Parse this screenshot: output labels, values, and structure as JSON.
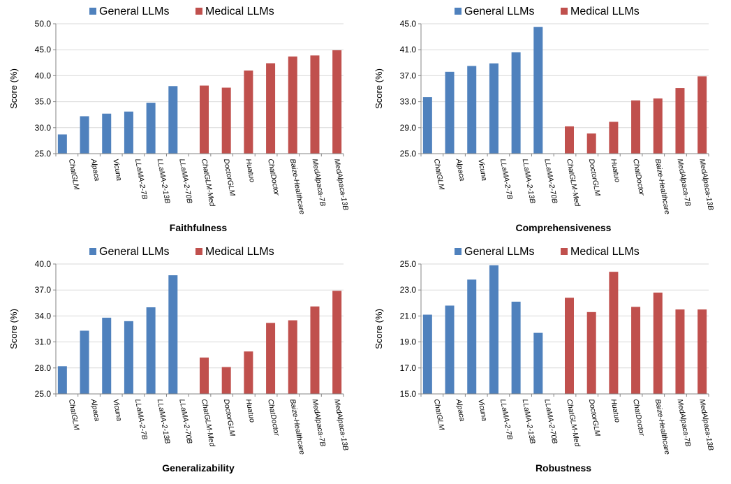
{
  "legend": {
    "general_label": "General LLMs",
    "medical_label": "Medical LLMs"
  },
  "colors": {
    "general": "#4F81BD",
    "medical": "#C0504D",
    "axis": "#868686",
    "grid": "#d9d9d9"
  },
  "chart_data": [
    {
      "type": "bar",
      "xlabel": "Faithfulness",
      "ylabel": "Score (%)",
      "ylim": [
        25,
        50
      ],
      "yticks": [
        "25.0",
        "30.0",
        "35.0",
        "40.0",
        "45.0",
        "50.0"
      ],
      "grid": true,
      "legend_position": "top",
      "categories": [
        "ChatGLM",
        "Alpaca",
        "Vicuna",
        "LLaMA-2-7B",
        "LLaMA-2-13B",
        "LLaMA-2-70B",
        "ChatGLM-Med",
        "DoctorGLM",
        "Huatuo",
        "ChatDoctor",
        "Baize-Healthcare",
        "MedAlpaca-7B",
        "MedAlpaca-13B"
      ],
      "series": [
        {
          "name": "General LLMs",
          "values": [
            28.7,
            32.2,
            32.7,
            33.1,
            34.8,
            38.0,
            null,
            null,
            null,
            null,
            null,
            null,
            null
          ]
        },
        {
          "name": "Medical LLMs",
          "values": [
            null,
            null,
            null,
            null,
            null,
            null,
            38.1,
            37.7,
            41.0,
            42.4,
            43.7,
            43.9,
            44.9
          ]
        }
      ]
    },
    {
      "type": "bar",
      "xlabel": "Comprehensiveness",
      "ylabel": "Score (%)",
      "ylim": [
        25,
        45
      ],
      "yticks": [
        "25.0",
        "29.0",
        "33.0",
        "37.0",
        "41.0",
        "45.0"
      ],
      "grid": true,
      "legend_position": "top",
      "categories": [
        "ChatGLM",
        "Alpaca",
        "Vicuna",
        "LLaMA-2-7B",
        "LLaMA-2-13B",
        "LLaMA-2-70B",
        "ChatGLM-Med",
        "DoctorGLM",
        "Huatuo",
        "ChatDoctor",
        "Baize-Healthcare",
        "MedAlpaca-7B",
        "MedAlpaca-13B"
      ],
      "series": [
        {
          "name": "General LLMs",
          "values": [
            33.7,
            37.6,
            38.5,
            38.9,
            40.6,
            44.5,
            null,
            null,
            null,
            null,
            null,
            null,
            null
          ]
        },
        {
          "name": "Medical LLMs",
          "values": [
            null,
            null,
            null,
            null,
            null,
            null,
            29.2,
            28.1,
            29.9,
            33.2,
            33.5,
            35.1,
            36.9
          ]
        }
      ]
    },
    {
      "type": "bar",
      "xlabel": "Generalizability",
      "ylabel": "Score (%)",
      "ylim": [
        25,
        40
      ],
      "yticks": [
        "25.0",
        "28.0",
        "31.0",
        "34.0",
        "37.0",
        "40.0"
      ],
      "grid": true,
      "legend_position": "top",
      "categories": [
        "ChatGLM",
        "Alpaca",
        "Vicuna",
        "LLaMA-2-7B",
        "LLaMA-2-13B",
        "LLaMA-2-70B",
        "ChatGLM-Med",
        "DoctorGLM",
        "Huatuo",
        "ChatDoctor",
        "Baize-Healthcare",
        "MedAlpaca-7B",
        "MedAlpaca-13B"
      ],
      "series": [
        {
          "name": "General LLMs",
          "values": [
            28.2,
            32.3,
            33.8,
            33.4,
            35.0,
            38.7,
            null,
            null,
            null,
            null,
            null,
            null,
            null
          ]
        },
        {
          "name": "Medical LLMs",
          "values": [
            null,
            null,
            null,
            null,
            null,
            null,
            29.2,
            28.1,
            29.9,
            33.2,
            33.5,
            35.1,
            36.9
          ]
        }
      ]
    },
    {
      "type": "bar",
      "xlabel": "Robustness",
      "ylabel": "Score (%)",
      "ylim": [
        15,
        25
      ],
      "yticks": [
        "15.0",
        "17.0",
        "19.0",
        "21.0",
        "23.0",
        "25.0"
      ],
      "grid": true,
      "legend_position": "top",
      "categories": [
        "ChatGLM",
        "Alpaca",
        "Vicuna",
        "LLaMA-2-7B",
        "LLaMA-2-13B",
        "LLaMA-2-70B",
        "ChatGLM-Med",
        "DoctorGLM",
        "Huatuo",
        "ChatDoctor",
        "Baize-Healthcare",
        "MedAlpaca-7B",
        "MedAlpaca-13B"
      ],
      "series": [
        {
          "name": "General LLMs",
          "values": [
            21.1,
            21.8,
            23.8,
            24.9,
            22.1,
            19.7,
            null,
            null,
            null,
            null,
            null,
            null,
            null
          ]
        },
        {
          "name": "Medical LLMs",
          "values": [
            null,
            null,
            null,
            null,
            null,
            null,
            22.4,
            21.3,
            24.4,
            21.7,
            22.8,
            21.5,
            21.5
          ]
        }
      ]
    }
  ]
}
